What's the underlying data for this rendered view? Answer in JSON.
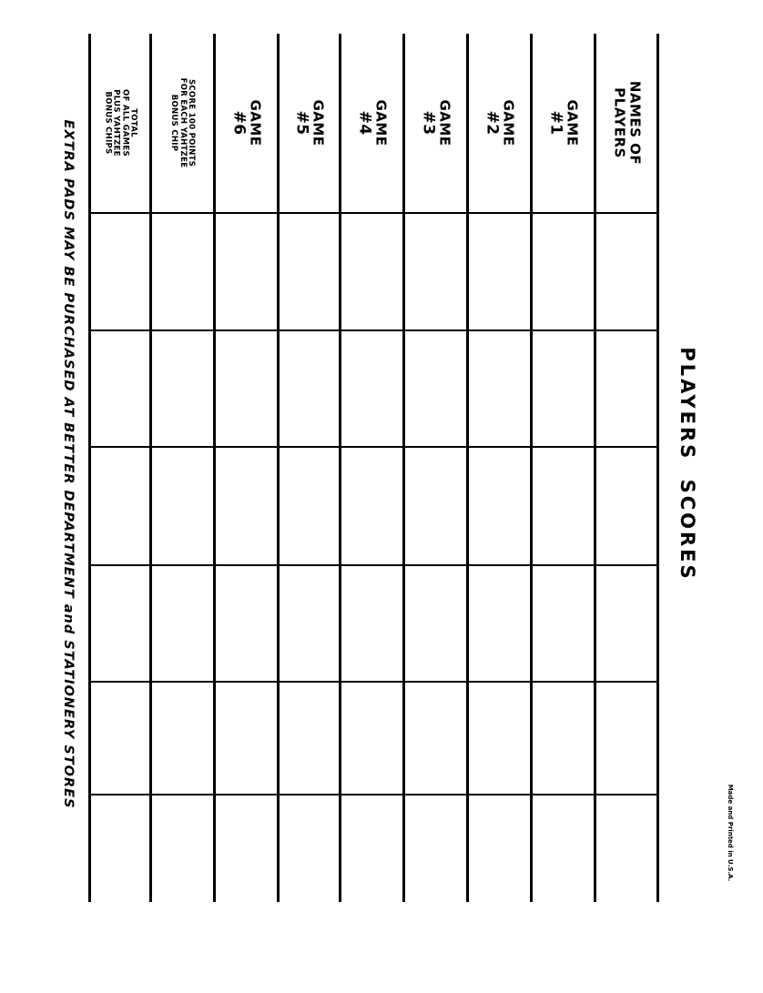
{
  "title": "PLAYERS SCORES",
  "header_rows": [
    {
      "lines": [
        "NAMES OF",
        "PLAYERS"
      ]
    },
    {
      "lines": [
        "GAME",
        "#1"
      ]
    },
    {
      "lines": [
        "GAME",
        "#2"
      ]
    },
    {
      "lines": [
        "GAME",
        "#3"
      ]
    },
    {
      "lines": [
        "GAME",
        "#4"
      ]
    },
    {
      "lines": [
        "GAME",
        "#5"
      ]
    },
    {
      "lines": [
        "GAME",
        "#6"
      ]
    },
    {
      "lines": [
        "SCORE 100 POINTS",
        "FOR EACH YAHTZEE",
        "BONUS CHIP"
      ]
    },
    {
      "lines": [
        "TOTAL",
        "OF ALL GAMES",
        "PLUS YAHTZEE",
        "BONUS CHIPS"
      ]
    }
  ],
  "player_columns": 6,
  "footer": "EXTRA PADS MAY BE PURCHASED AT BETTER DEPARTMENT and STATIONERY STORES",
  "imprint": "Made and Printed in U.S.A."
}
